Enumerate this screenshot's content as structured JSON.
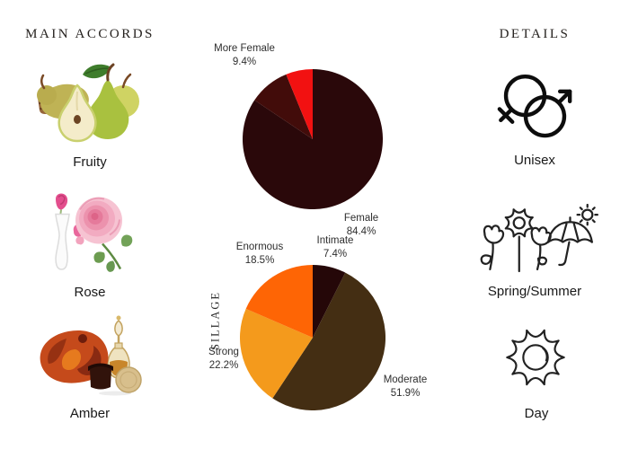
{
  "accords": {
    "title": "MAIN ACCORDS",
    "items": [
      {
        "label": "Fruity",
        "image": "pears-image"
      },
      {
        "label": "Rose",
        "image": "rose-image"
      },
      {
        "label": "Amber",
        "image": "amber-image"
      }
    ]
  },
  "details": {
    "title": "DETAILS",
    "items": [
      {
        "label": "Unisex",
        "icon": "unisex-icon"
      },
      {
        "label": "Spring/Summer",
        "icon": "spring-summer-icon"
      },
      {
        "label": "Day",
        "icon": "day-sun-icon"
      }
    ]
  },
  "chart_data": [
    {
      "type": "pie",
      "name": "gender",
      "title": "",
      "start_angle_deg": 0,
      "direction": "clockwise",
      "slices": [
        {
          "label": "Female",
          "pct": 84.4,
          "pct_label": "84.4%",
          "color": "#2a080a"
        },
        {
          "label": "More Female",
          "pct": 9.4,
          "pct_label": "9.4%",
          "color": "#420c0a"
        },
        {
          "label": "",
          "pct": 6.2,
          "pct_label": "",
          "color": "#f21111"
        }
      ]
    },
    {
      "type": "pie",
      "name": "sillage",
      "axis_label": "SILLAGE",
      "start_angle_deg": 0,
      "direction": "clockwise",
      "slices": [
        {
          "label": "Intimate",
          "pct": 7.4,
          "pct_label": "7.4%",
          "color": "#250708"
        },
        {
          "label": "Moderate",
          "pct": 51.9,
          "pct_label": "51.9%",
          "color": "#442e13"
        },
        {
          "label": "Strong",
          "pct": 22.2,
          "pct_label": "22.2%",
          "color": "#f49a1c"
        },
        {
          "label": "Enormous",
          "pct": 18.5,
          "pct_label": "18.5%",
          "color": "#fe6505"
        }
      ]
    }
  ]
}
